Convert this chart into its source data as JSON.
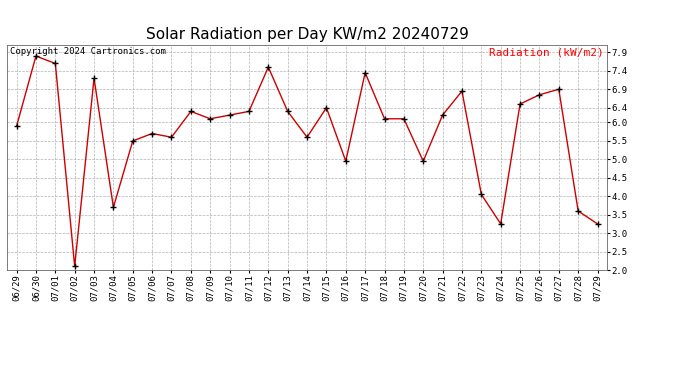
{
  "title": "Solar Radiation per Day KW/m2 20240729",
  "legend_label": "Radiation (kW/m2)",
  "copyright": "Copyright 2024 Cartronics.com",
  "dates": [
    "06/29",
    "06/30",
    "07/01",
    "07/02",
    "07/03",
    "07/04",
    "07/05",
    "07/06",
    "07/07",
    "07/08",
    "07/09",
    "07/10",
    "07/11",
    "07/12",
    "07/13",
    "07/14",
    "07/15",
    "07/16",
    "07/17",
    "07/18",
    "07/19",
    "07/20",
    "07/21",
    "07/22",
    "07/23",
    "07/24",
    "07/25",
    "07/26",
    "07/27",
    "07/28",
    "07/29"
  ],
  "values": [
    5.9,
    7.8,
    7.6,
    2.1,
    7.2,
    3.7,
    5.5,
    5.7,
    5.6,
    6.3,
    6.1,
    6.2,
    6.3,
    7.5,
    6.3,
    5.6,
    6.4,
    4.95,
    7.35,
    6.1,
    6.1,
    4.95,
    6.2,
    6.85,
    4.05,
    3.25,
    6.5,
    6.75,
    6.9,
    3.6,
    3.25
  ],
  "line_color": "#cc0000",
  "marker_color": "#000000",
  "background_color": "#ffffff",
  "grid_color": "#aaaaaa",
  "ylim": [
    2.0,
    8.1
  ],
  "yticks": [
    2.0,
    2.5,
    3.0,
    3.5,
    4.0,
    4.5,
    5.0,
    5.5,
    6.0,
    6.4,
    6.9,
    7.4,
    7.9
  ],
  "title_fontsize": 11,
  "legend_fontsize": 8,
  "copyright_fontsize": 6.5,
  "tick_fontsize": 6.5
}
